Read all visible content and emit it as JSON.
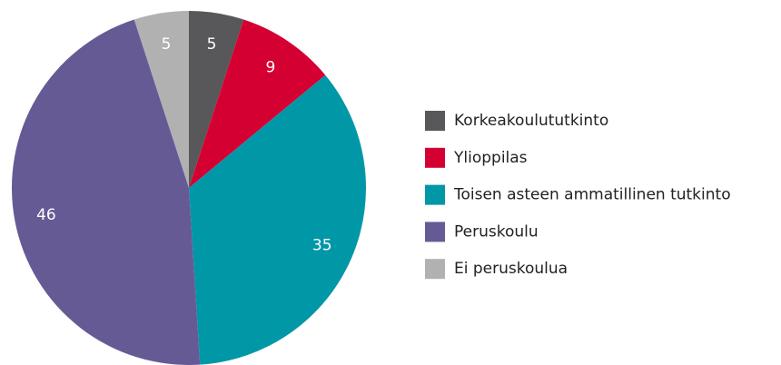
{
  "chart_data": {
    "type": "pie",
    "categories": [
      "Korkeakoulututkinto",
      "Ylioppilas",
      "Toisen asteen ammatillinen tutkinto",
      "Peruskoulu",
      "Ei peruskoulua"
    ],
    "values": [
      5,
      9,
      35,
      46,
      5
    ],
    "colors": [
      "#58585a",
      "#d50032",
      "#0097a7",
      "#665a95",
      "#b1b1b1"
    ],
    "legend": "right"
  }
}
